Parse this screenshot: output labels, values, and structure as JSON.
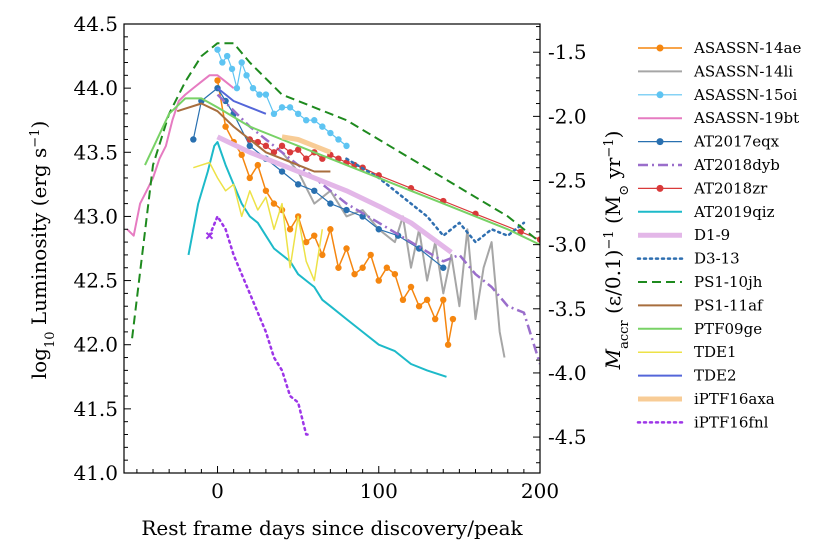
{
  "chart_data": {
    "type": "line",
    "xlabel": "Rest frame days since discovery/peak",
    "ylabel": "log10 Luminosity (erg s−1)",
    "ylabel_parts": {
      "a": "log",
      "b": "10",
      "c": " Luminosity (erg s",
      "d": "−1",
      "e": ")"
    },
    "y2label": "Ṁaccr (ε/0.1)−1 (M⊙ yr−1)",
    "y2label_parts": {
      "a": "M",
      "b": "accr",
      "c": " (ε/0.1)",
      "d": "−1",
      "e": " (M",
      "f": "⊙",
      "g": " yr",
      "h": "−1",
      "i": ")"
    },
    "xlim": [
      -58,
      200
    ],
    "ylim": [
      41.0,
      44.5
    ],
    "y2lim": [
      -4.78,
      -1.28
    ],
    "xticks": [
      0,
      100,
      200
    ],
    "yticks": [
      41.0,
      41.5,
      42.0,
      42.5,
      43.0,
      43.5,
      44.0,
      44.5
    ],
    "y2ticks": [
      -4.5,
      -4.0,
      -3.5,
      -3.0,
      -2.5,
      -2.0,
      -1.5
    ],
    "xtick_labels": [
      "0",
      "100",
      "200"
    ],
    "ytick_labels": [
      "41.0",
      "41.5",
      "42.0",
      "42.5",
      "43.0",
      "43.5",
      "44.0",
      "44.5"
    ],
    "y2tick_labels": [
      "-4.5",
      "-4.0",
      "-3.5",
      "-3.0",
      "-2.5",
      "-2.0",
      "-1.5"
    ],
    "series": [
      {
        "name": "ASASSN-14ae",
        "color": "#f5860f",
        "style": "solid",
        "marker": "o",
        "width": 1.5,
        "x": [
          0,
          5,
          10,
          15,
          20,
          25,
          30,
          35,
          40,
          45,
          50,
          55,
          60,
          65,
          70,
          75,
          80,
          85,
          90,
          95,
          100,
          105,
          110,
          115,
          120,
          125,
          130,
          135,
          140,
          143,
          146
        ],
        "y": [
          44.06,
          43.7,
          43.58,
          43.48,
          43.3,
          43.4,
          43.2,
          43.1,
          43.05,
          42.9,
          43.0,
          42.8,
          42.85,
          42.7,
          42.9,
          42.6,
          42.75,
          42.55,
          42.6,
          42.7,
          42.5,
          42.6,
          42.55,
          42.35,
          42.45,
          42.3,
          42.35,
          42.2,
          42.35,
          42.0,
          42.2
        ]
      },
      {
        "name": "ASASSN-14li",
        "color": "#a6a6a6",
        "style": "solid",
        "marker": "",
        "width": 2,
        "x": [
          40,
          50,
          60,
          70,
          80,
          90,
          100,
          110,
          115,
          120,
          125,
          130,
          135,
          140,
          145,
          150,
          155,
          160,
          165,
          170,
          175,
          178
        ],
        "y": [
          43.5,
          43.35,
          43.1,
          43.2,
          43.0,
          43.05,
          42.9,
          42.8,
          43.0,
          42.6,
          42.9,
          42.5,
          42.8,
          42.4,
          42.7,
          42.3,
          42.9,
          42.2,
          42.6,
          42.8,
          42.1,
          41.9
        ]
      },
      {
        "name": "ASASSN-15oi",
        "color": "#5ec4f2",
        "style": "solid",
        "marker": "o",
        "width": 1.2,
        "x": [
          0,
          3,
          6,
          9,
          12,
          15,
          18,
          22,
          26,
          30,
          35,
          40,
          45,
          50,
          55,
          60,
          65,
          70,
          75,
          80
        ],
        "y": [
          44.3,
          44.2,
          44.25,
          44.15,
          44.0,
          44.2,
          44.1,
          44.0,
          43.95,
          43.95,
          43.8,
          43.85,
          43.85,
          43.8,
          43.75,
          43.75,
          43.7,
          43.65,
          43.6,
          43.55
        ]
      },
      {
        "name": "ASASSN-19bt",
        "color": "#e67bc1",
        "style": "solid",
        "marker": "",
        "width": 2,
        "x": [
          -56,
          -52,
          -48,
          -44,
          -40,
          -36,
          -32,
          -28,
          -24,
          -20,
          -15,
          -10,
          -5,
          0,
          5,
          10
        ],
        "y": [
          42.9,
          42.85,
          43.1,
          43.2,
          43.3,
          43.45,
          43.55,
          43.75,
          43.9,
          43.95,
          44.0,
          44.05,
          44.1,
          44.1,
          44.05,
          44.0
        ]
      },
      {
        "name": "AT2017eqx",
        "color": "#2970b0",
        "style": "solid",
        "marker": "o",
        "width": 1.2,
        "x": [
          -15,
          -10,
          0,
          5,
          10,
          20,
          30,
          40,
          50,
          60,
          70,
          80,
          90,
          100,
          112,
          125,
          140
        ],
        "y": [
          43.6,
          43.9,
          44.0,
          43.9,
          43.8,
          43.55,
          43.45,
          43.35,
          43.25,
          43.2,
          43.1,
          43.05,
          43.0,
          42.9,
          42.85,
          42.75,
          42.6
        ]
      },
      {
        "name": "AT2018dyb",
        "color": "#9a6ecb",
        "style": "dashdot",
        "marker": "",
        "width": 2.5,
        "x": [
          0,
          20,
          40,
          60,
          80,
          100,
          120,
          140,
          150,
          160,
          170,
          180,
          190,
          200
        ],
        "y": [
          43.95,
          43.7,
          43.5,
          43.3,
          43.1,
          42.95,
          42.8,
          42.65,
          42.7,
          42.55,
          42.45,
          42.3,
          42.25,
          41.85
        ]
      },
      {
        "name": "AT2018zr",
        "color": "#d93a3a",
        "style": "solid",
        "marker": "o",
        "width": 1.2,
        "x": [
          20,
          25,
          30,
          35,
          40,
          45,
          50,
          55,
          60,
          65,
          70,
          75,
          80,
          85,
          90,
          100,
          120,
          140,
          160,
          188,
          200
        ],
        "y": [
          43.6,
          43.58,
          43.55,
          43.5,
          43.55,
          43.5,
          43.52,
          43.45,
          43.5,
          43.45,
          43.48,
          43.45,
          43.42,
          43.4,
          43.38,
          43.32,
          43.22,
          43.12,
          43.02,
          42.88,
          42.82
        ]
      },
      {
        "name": "AT2019qiz",
        "color": "#1dbac9",
        "style": "solid",
        "marker": "",
        "width": 2,
        "x": [
          -18,
          -12,
          -6,
          -2,
          0,
          5,
          10,
          15,
          20,
          25,
          30,
          35,
          40,
          45,
          50,
          55,
          60,
          65,
          70,
          80,
          90,
          100,
          110,
          120,
          130,
          142
        ],
        "y": [
          42.7,
          43.1,
          43.35,
          43.55,
          43.58,
          43.4,
          43.25,
          43.1,
          43.0,
          42.95,
          42.85,
          42.75,
          42.7,
          42.65,
          42.55,
          42.5,
          42.45,
          42.35,
          42.3,
          42.2,
          42.1,
          42.0,
          41.95,
          41.85,
          41.8,
          41.75
        ]
      },
      {
        "name": "D1-9",
        "color": "#e3b7e8",
        "style": "solid",
        "marker": "",
        "width": 5,
        "x": [
          0,
          20,
          40,
          60,
          80,
          100,
          120,
          145
        ],
        "y": [
          43.62,
          43.5,
          43.4,
          43.3,
          43.2,
          43.08,
          42.95,
          42.72
        ]
      },
      {
        "name": "D3-13",
        "color": "#2f6fb0",
        "style": "dotted",
        "marker": "",
        "width": 2.5,
        "x": [
          80,
          100,
          120,
          130,
          140,
          150,
          160,
          170,
          180,
          190
        ],
        "y": [
          43.45,
          43.3,
          43.1,
          43.0,
          42.85,
          42.95,
          42.8,
          42.9,
          42.85,
          42.95
        ]
      },
      {
        "name": "PS1-10jh",
        "color": "#1e8a1e",
        "style": "dashed",
        "marker": "",
        "width": 2,
        "x": [
          -53,
          -40,
          -30,
          -20,
          -10,
          0,
          10,
          20,
          40,
          60,
          80,
          100,
          120,
          140,
          160,
          180,
          200
        ],
        "y": [
          42.05,
          43.4,
          43.8,
          44.05,
          44.25,
          44.35,
          44.35,
          44.2,
          43.95,
          43.85,
          43.75,
          43.6,
          43.45,
          43.3,
          43.15,
          43.0,
          42.8
        ]
      },
      {
        "name": "PS1-11af",
        "color": "#a86e3e",
        "style": "solid",
        "marker": "",
        "width": 2,
        "x": [
          -25,
          -10,
          0,
          10,
          20,
          30,
          40,
          50,
          60,
          70
        ],
        "y": [
          43.82,
          43.88,
          43.82,
          43.7,
          43.6,
          43.5,
          43.45,
          43.4,
          43.35,
          43.35
        ]
      },
      {
        "name": "PTF09ge",
        "color": "#78d266",
        "style": "solid",
        "marker": "",
        "width": 2,
        "x": [
          -45,
          -30,
          -20,
          -10,
          0,
          20,
          40,
          60,
          80,
          100,
          120,
          140,
          160,
          180,
          200
        ],
        "y": [
          43.4,
          43.8,
          43.92,
          43.92,
          43.85,
          43.7,
          43.6,
          43.5,
          43.4,
          43.3,
          43.2,
          43.1,
          43.0,
          42.9,
          42.78
        ]
      },
      {
        "name": "TDE1",
        "color": "#ede247",
        "style": "solid",
        "marker": "",
        "width": 1.5,
        "x": [
          -15,
          -5,
          0,
          5,
          10,
          15,
          20,
          25,
          30,
          35,
          40,
          45,
          50,
          55,
          60,
          65
        ],
        "y": [
          43.38,
          43.42,
          43.3,
          43.2,
          43.25,
          43.0,
          43.2,
          43.05,
          43.15,
          42.9,
          43.1,
          42.6,
          43.0,
          42.65,
          42.5,
          42.9
        ]
      },
      {
        "name": "TDE2",
        "color": "#5466d9",
        "style": "solid",
        "marker": "",
        "width": 2,
        "x": [
          0,
          10,
          20,
          30
        ],
        "y": [
          44.0,
          43.9,
          43.85,
          43.8
        ]
      },
      {
        "name": "iPTF16axa",
        "color": "#f8cc96",
        "style": "solid",
        "marker": "",
        "width": 5,
        "x": [
          40,
          50,
          60,
          70
        ],
        "y": [
          43.62,
          43.6,
          43.55,
          43.5
        ]
      },
      {
        "name": "iPTF16fnl",
        "color": "#9d35e8",
        "style": "dotted",
        "marker": "x",
        "width": 2.5,
        "x": [
          -5,
          0,
          5,
          10,
          15,
          20,
          25,
          30,
          35,
          40,
          45,
          50,
          55,
          58
        ],
        "y": [
          42.85,
          43.0,
          42.9,
          42.7,
          42.55,
          42.4,
          42.25,
          42.1,
          41.9,
          41.8,
          41.6,
          41.55,
          41.3,
          41.3
        ]
      }
    ]
  }
}
